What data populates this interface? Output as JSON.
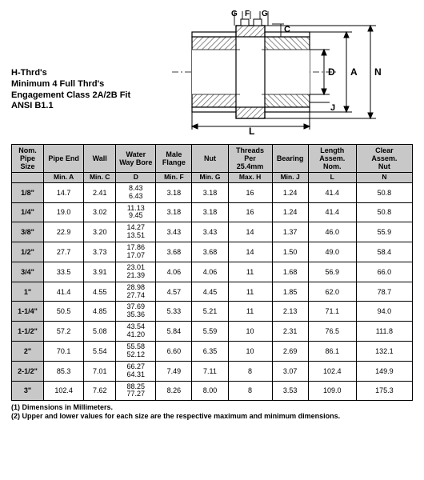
{
  "notes": {
    "line1": "H-Thrd's",
    "line2": "Minimum 4  Full Thrd's",
    "line3": "Engagement Class  2A/2B Fit",
    "line4": "ANSI B1.1"
  },
  "diagram": {
    "labels": {
      "G1": "G",
      "F": "F",
      "C": "C",
      "D": "D",
      "A": "A",
      "N": "N",
      "J": "J",
      "L": "L"
    },
    "colors": {
      "stroke": "#000000",
      "hatch": "#c0c0c0",
      "bg": "#ffffff"
    }
  },
  "table": {
    "headers": [
      "Nom.\nPipe\nSize",
      "Pipe End",
      "Wall",
      "Water\nWay Bore",
      "Male\nFlange",
      "Nut",
      "Threads\nPer\n25.4mm",
      "Bearing",
      "Length\nAssem.\nNom.",
      "Clear\nAssem.\nNut"
    ],
    "subheaders": [
      "",
      "Min. A",
      "Min. C",
      "D",
      "Min. F",
      "Min. G",
      "Max. H",
      "Min. J",
      "L",
      "N"
    ],
    "rows": [
      {
        "size": "1/8\"",
        "a": "14.7",
        "c": "2.41",
        "d_hi": "8.43",
        "d_lo": "6.43",
        "f": "3.18",
        "g": "3.18",
        "h": "16",
        "j": "1.24",
        "l": "41.4",
        "n": "50.8"
      },
      {
        "size": "1/4\"",
        "a": "19.0",
        "c": "3.02",
        "d_hi": "11.13",
        "d_lo": "9.45",
        "f": "3.18",
        "g": "3.18",
        "h": "16",
        "j": "1.24",
        "l": "41.4",
        "n": "50.8"
      },
      {
        "size": "3/8\"",
        "a": "22.9",
        "c": "3.20",
        "d_hi": "14.27",
        "d_lo": "13.51",
        "f": "3.43",
        "g": "3.43",
        "h": "14",
        "j": "1.37",
        "l": "46.0",
        "n": "55.9"
      },
      {
        "size": "1/2\"",
        "a": "27.7",
        "c": "3.73",
        "d_hi": "17.86",
        "d_lo": "17.07",
        "f": "3.68",
        "g": "3.68",
        "h": "14",
        "j": "1.50",
        "l": "49.0",
        "n": "58.4"
      },
      {
        "size": "3/4\"",
        "a": "33.5",
        "c": "3.91",
        "d_hi": "23.01",
        "d_lo": "21.39",
        "f": "4.06",
        "g": "4.06",
        "h": "11",
        "j": "1.68",
        "l": "56.9",
        "n": "66.0"
      },
      {
        "size": "1\"",
        "a": "41.4",
        "c": "4.55",
        "d_hi": "28.98",
        "d_lo": "27.74",
        "f": "4.57",
        "g": "4.45",
        "h": "11",
        "j": "1.85",
        "l": "62.0",
        "n": "78.7"
      },
      {
        "size": "1-1/4\"",
        "a": "50.5",
        "c": "4.85",
        "d_hi": "37.69",
        "d_lo": "35.36",
        "f": "5.33",
        "g": "5.21",
        "h": "11",
        "j": "2.13",
        "l": "71.1",
        "n": "94.0"
      },
      {
        "size": "1-1/2\"",
        "a": "57.2",
        "c": "5.08",
        "d_hi": "43.54",
        "d_lo": "41.20",
        "f": "5.84",
        "g": "5.59",
        "h": "10",
        "j": "2.31",
        "l": "76.5",
        "n": "111.8"
      },
      {
        "size": "2\"",
        "a": "70.1",
        "c": "5.54",
        "d_hi": "55.58",
        "d_lo": "52.12",
        "f": "6.60",
        "g": "6.35",
        "h": "10",
        "j": "2.69",
        "l": "86.1",
        "n": "132.1"
      },
      {
        "size": "2-1/2\"",
        "a": "85.3",
        "c": "7.01",
        "d_hi": "66.27",
        "d_lo": "64.31",
        "f": "7.49",
        "g": "7.11",
        "h": "8",
        "j": "3.07",
        "l": "102.4",
        "n": "149.9"
      },
      {
        "size": "3\"",
        "a": "102.4",
        "c": "7.62",
        "d_hi": "88.25",
        "d_lo": "77.27",
        "f": "8.26",
        "g": "8.00",
        "h": "8",
        "j": "3.53",
        "l": "109.0",
        "n": "175.3"
      }
    ],
    "column_widths_pct": [
      8,
      10,
      8,
      10,
      9,
      9,
      11,
      9,
      12,
      14
    ]
  },
  "footnotes": {
    "f1": "(1)  Dimensions in Millimeters.",
    "f2": "(2)  Upper and lower values for each size are the respective maximum and minimum dimensions."
  }
}
